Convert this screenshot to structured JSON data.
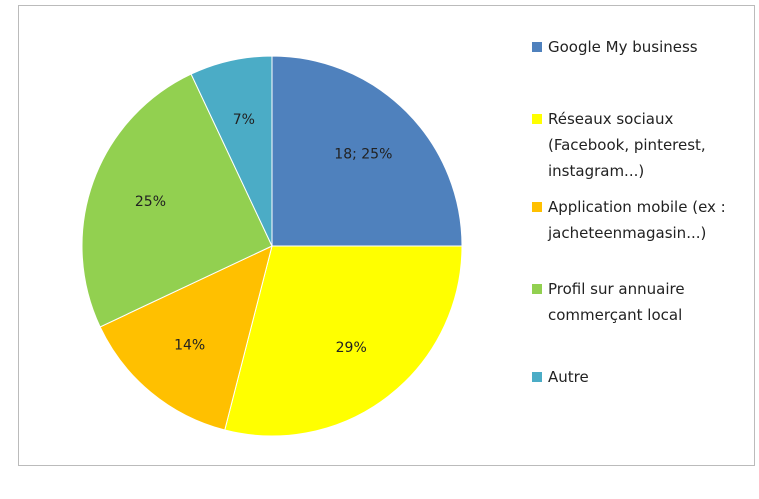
{
  "chart_data": {
    "type": "pie",
    "categories": [
      "Google My business",
      "Réseaux sociaux (Facebook, pinterest, instagram...)",
      "Application mobile (ex : jacheteenmagasin...)",
      "Profil sur annuaire commerçant local",
      "Autre"
    ],
    "values": [
      25,
      29,
      14,
      25,
      7
    ],
    "value_labels": [
      "18; 25%",
      "29%",
      "14%",
      "25%",
      "7%"
    ],
    "colors": [
      "#4f81bd",
      "#ffff00",
      "#ffc000",
      "#92d050",
      "#4bacc6"
    ],
    "legend": "right"
  }
}
